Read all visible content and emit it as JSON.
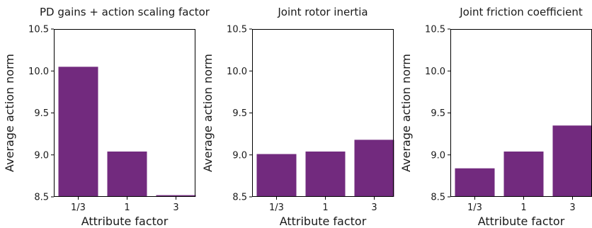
{
  "chart_data": [
    {
      "type": "bar",
      "title": "PD gains + action scaling factor",
      "xlabel": "Attribute factor",
      "ylabel": "Average action norm",
      "categories": [
        "1/3",
        "1",
        "3"
      ],
      "values": [
        10.05,
        9.04,
        8.52
      ],
      "ylim": [
        8.5,
        10.5
      ],
      "yticks": [
        "8.5",
        "9.0",
        "9.5",
        "10.0",
        "10.5"
      ],
      "bar_color": "#722a7e",
      "grid": false
    },
    {
      "type": "bar",
      "title": "Joint rotor inertia",
      "xlabel": "Attribute factor",
      "ylabel": "Average action norm",
      "categories": [
        "1/3",
        "1",
        "3"
      ],
      "values": [
        9.01,
        9.04,
        9.18
      ],
      "ylim": [
        8.5,
        10.5
      ],
      "yticks": [
        "8.5",
        "9.0",
        "9.5",
        "10.0",
        "10.5"
      ],
      "bar_color": "#722a7e",
      "grid": false
    },
    {
      "type": "bar",
      "title": "Joint friction coefficient",
      "xlabel": "Attribute factor",
      "ylabel": "Average action norm",
      "categories": [
        "1/3",
        "1",
        "3"
      ],
      "values": [
        8.84,
        9.04,
        9.35
      ],
      "ylim": [
        8.5,
        10.5
      ],
      "yticks": [
        "8.5",
        "9.0",
        "9.5",
        "10.0",
        "10.5"
      ],
      "bar_color": "#722a7e",
      "grid": false
    }
  ]
}
